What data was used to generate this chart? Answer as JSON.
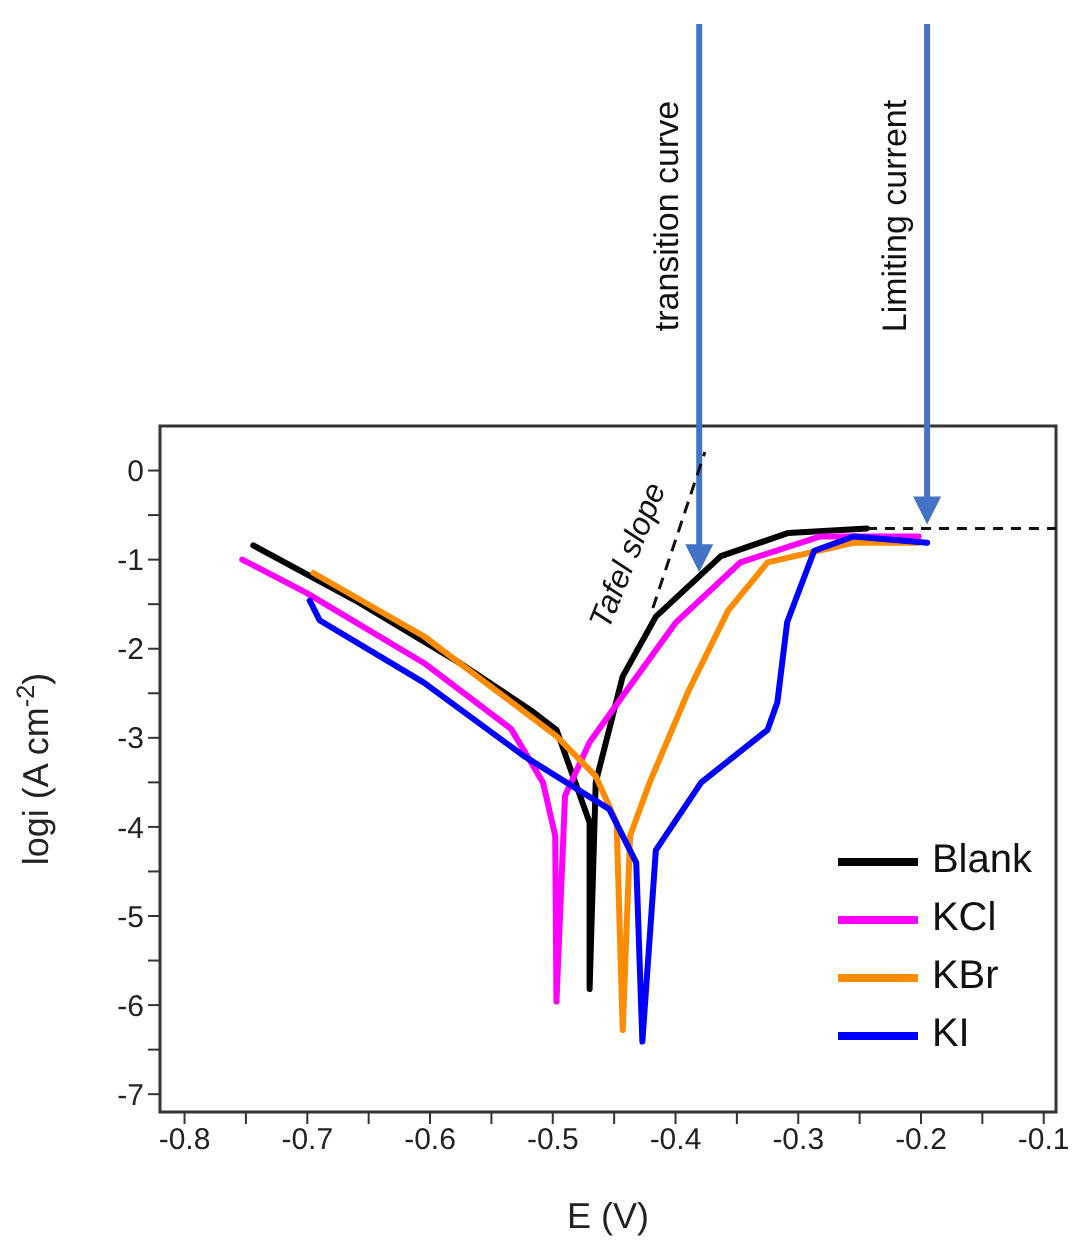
{
  "chart_data": {
    "type": "line",
    "xlabel": "E (V)",
    "ylabel": "logi (A cm$^{-2}$)",
    "xlim": [
      -0.82,
      -0.09
    ],
    "ylim": [
      -7.2,
      0.5
    ],
    "xticks": [
      -0.8,
      {
        "value": -0.75,
        "label": null
      },
      -0.7,
      {
        "value": -0.65,
        "label": null
      },
      -0.6,
      {
        "value": -0.55,
        "label": null
      },
      -0.5,
      {
        "value": -0.45,
        "label": null
      },
      -0.4,
      {
        "value": -0.35,
        "label": null
      },
      -0.3,
      {
        "value": -0.25,
        "label": null
      },
      -0.2,
      {
        "value": -0.15,
        "label": null
      },
      -0.1
    ],
    "yticks": [
      0,
      {
        "value": -0.5,
        "label": null
      },
      -1,
      {
        "value": -1.5,
        "label": null
      },
      -2,
      {
        "value": -2.5,
        "label": null
      },
      -3,
      {
        "value": -3.5,
        "label": null
      },
      -4,
      {
        "value": -4.5,
        "label": null
      },
      -5,
      {
        "value": -5.5,
        "label": null
      },
      -6,
      {
        "value": -6.5,
        "label": null
      },
      -7
    ],
    "grid": false,
    "legend": "bottom right",
    "marker": "none",
    "line_style": "solid",
    "series": [
      {
        "name": "Blank",
        "color": "#000000",
        "x": [
          -0.744,
          -0.658,
          -0.577,
          -0.518,
          -0.497,
          -0.47,
          -0.47,
          -0.465,
          -0.443,
          -0.416,
          -0.363,
          -0.308,
          -0.244
        ],
        "values": [
          -0.84,
          -1.48,
          -2.15,
          -2.69,
          -2.91,
          -3.95,
          -5.82,
          -3.5,
          -2.31,
          -1.64,
          -0.96,
          -0.7,
          -0.65
        ]
      },
      {
        "name": "KCl",
        "color": "#ff00ff",
        "x": [
          -0.753,
          -0.701,
          -0.605,
          -0.534,
          -0.508,
          -0.498,
          -0.497,
          -0.49,
          -0.47,
          -0.443,
          -0.4,
          -0.347,
          -0.282,
          -0.202
        ],
        "values": [
          -1.0,
          -1.37,
          -2.16,
          -2.9,
          -3.5,
          -4.1,
          -5.96,
          -3.65,
          -3.05,
          -2.53,
          -1.71,
          -1.03,
          -0.74,
          -0.74
        ]
      },
      {
        "name": "KBr",
        "color": "#ff8c00",
        "x": [
          -0.695,
          -0.605,
          -0.497,
          -0.465,
          -0.448,
          -0.443,
          -0.437,
          -0.421,
          -0.389,
          -0.357,
          -0.325,
          -0.255,
          -0.202
        ],
        "values": [
          -1.15,
          -1.86,
          -2.98,
          -3.43,
          -3.95,
          -6.28,
          -4.1,
          -3.5,
          -2.46,
          -1.57,
          -1.03,
          -0.81,
          -0.81
        ]
      },
      {
        "name": "KI",
        "color": "#0000ff",
        "x": [
          -0.698,
          -0.69,
          -0.605,
          -0.524,
          -0.454,
          -0.432,
          -0.427,
          -0.416,
          -0.379,
          -0.325,
          -0.317,
          -0.309,
          -0.287,
          -0.255,
          -0.195
        ],
        "values": [
          -1.46,
          -1.68,
          -2.38,
          -3.2,
          -3.8,
          -4.4,
          -6.41,
          -4.26,
          -3.5,
          -2.91,
          -2.6,
          -1.7,
          -0.9,
          -0.74,
          -0.81
        ]
      }
    ],
    "annotations": [
      "transition curve",
      "Limiting current",
      "Tafel slope"
    ]
  }
}
